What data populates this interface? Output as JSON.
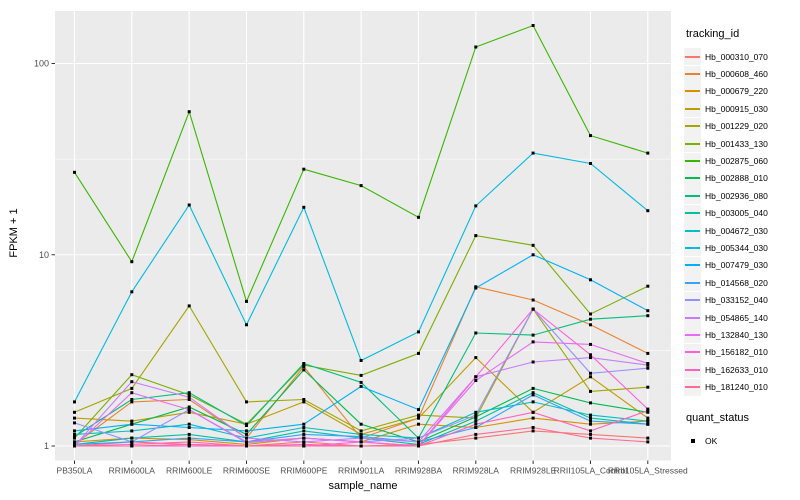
{
  "figure": {
    "background": "#FFFFFF",
    "panel_background": "#EBEBEB",
    "grid_color": "#FFFFFF",
    "axis_text_color": "#4D4D4D",
    "tick_color": "#333333",
    "point_color": "#000000",
    "legend_key_background": "#F2F2F2"
  },
  "axes": {
    "x_title": "sample_name",
    "y_title": "FPKM + 1",
    "y_tick_labels": [
      "1",
      "10",
      "100"
    ],
    "y_tick_values": [
      1,
      10,
      100
    ]
  },
  "legend": {
    "tracking_title": "tracking_id",
    "quant_title": "quant_status",
    "quant_items": [
      {
        "label": "OK"
      }
    ]
  },
  "chart_data": {
    "type": "line",
    "title": "",
    "xlabel": "sample_name",
    "ylabel": "FPKM + 1",
    "y_scale": "log10",
    "ylim": [
      0.95,
      200
    ],
    "grid": "on",
    "legend_position": "right",
    "y_major_breaks": [
      1,
      10,
      100
    ],
    "y_minor_breaks": [
      3.162,
      31.62
    ],
    "marker": "black-square",
    "categories": [
      "PB350LA",
      "RRIM600LA",
      "RRIM600LE",
      "RRIM600SE",
      "RRIM600PE",
      "RRIM901LA",
      "RRIM928BA",
      "RRIM928LA",
      "RRIM928LE",
      "RRII105LA_Control",
      "RRII105LA_Stressed"
    ],
    "series": [
      {
        "name": "Hb_000310_070",
        "color": "#F8766D",
        "values": [
          1.0,
          1.05,
          1.02,
          1.0,
          1.05,
          1.0,
          1.02,
          1.1,
          1.2,
          1.15,
          1.1
        ]
      },
      {
        "name": "Hb_000608_460",
        "color": "#EA8331",
        "values": [
          1.02,
          1.7,
          1.75,
          1.1,
          2.6,
          1.1,
          1.4,
          6.8,
          5.8,
          4.3,
          3.05
        ]
      },
      {
        "name": "Hb_000679_220",
        "color": "#D89000",
        "values": [
          1.05,
          1.1,
          1.08,
          1.02,
          1.1,
          1.05,
          1.3,
          1.25,
          1.4,
          1.3,
          1.35
        ]
      },
      {
        "name": "Hb_000915_030",
        "color": "#C09B00",
        "values": [
          1.4,
          1.35,
          1.5,
          1.3,
          1.7,
          1.15,
          1.4,
          2.9,
          1.5,
          2.3,
          1.4
        ]
      },
      {
        "name": "Hb_001229_020",
        "color": "#A3A500",
        "values": [
          1.5,
          2.0,
          5.4,
          1.7,
          1.75,
          1.2,
          1.45,
          1.4,
          5.2,
          1.93,
          2.03
        ]
      },
      {
        "name": "Hb_001433_130",
        "color": "#7CAE00",
        "values": [
          1.1,
          2.36,
          1.85,
          1.3,
          2.65,
          2.34,
          3.05,
          12.6,
          11.2,
          4.9,
          6.85
        ]
      },
      {
        "name": "Hb_002875_060",
        "color": "#39B600",
        "values": [
          27,
          9.2,
          56,
          5.7,
          28,
          23,
          15.7,
          122,
          158,
          42,
          34
        ]
      },
      {
        "name": "Hb_002888_010",
        "color": "#00BB4E",
        "values": [
          1.05,
          1.3,
          1.6,
          1.15,
          2.5,
          1.3,
          1.05,
          1.42,
          2.0,
          1.68,
          1.5
        ]
      },
      {
        "name": "Hb_002936_080",
        "color": "#00BF7D",
        "values": [
          1.12,
          1.75,
          1.9,
          1.28,
          2.7,
          2.15,
          1.1,
          3.9,
          3.8,
          4.6,
          4.8
        ]
      },
      {
        "name": "Hb_003005_040",
        "color": "#00C1A3",
        "values": [
          1.02,
          1.1,
          1.15,
          1.05,
          1.2,
          1.1,
          1.02,
          1.35,
          1.9,
          1.4,
          1.3
        ]
      },
      {
        "name": "Hb_004672_030",
        "color": "#00BFC4",
        "values": [
          1.15,
          1.2,
          1.3,
          1.1,
          1.25,
          1.15,
          1.1,
          1.5,
          1.7,
          1.45,
          1.35
        ]
      },
      {
        "name": "Hb_005344_030",
        "color": "#00BAE0",
        "values": [
          1.7,
          6.4,
          18.2,
          4.3,
          17.7,
          2.8,
          3.95,
          18,
          34,
          30,
          17
        ]
      },
      {
        "name": "Hb_007479_030",
        "color": "#00B0F6",
        "values": [
          1.2,
          1.3,
          1.25,
          1.2,
          1.3,
          2.05,
          1.55,
          6.7,
          10,
          7.4,
          5.1
        ]
      },
      {
        "name": "Hb_014568_020",
        "color": "#35A2FF",
        "values": [
          1.02,
          1.05,
          1.1,
          1.05,
          1.15,
          1.12,
          1.05,
          1.25,
          1.85,
          1.35,
          1.3
        ]
      },
      {
        "name": "Hb_033152_040",
        "color": "#9590FF",
        "values": [
          1.32,
          1.05,
          1.55,
          1.04,
          1.1,
          1.05,
          1.1,
          1.45,
          5.2,
          2.4,
          2.55
        ]
      },
      {
        "name": "Hb_054865_140",
        "color": "#C77CFF",
        "values": [
          1.0,
          2.17,
          1.8,
          1.1,
          1.05,
          1.1,
          1.05,
          2.3,
          2.75,
          2.9,
          2.65
        ]
      },
      {
        "name": "Hb_132840_130",
        "color": "#E76BF3",
        "values": [
          1.0,
          1.9,
          1.55,
          1.05,
          1.1,
          1.05,
          1.0,
          2.2,
          3.5,
          3.4,
          2.7
        ]
      },
      {
        "name": "Hb_156182_010",
        "color": "#FA62DB",
        "values": [
          1.0,
          1.0,
          1.0,
          1.0,
          1.0,
          1.05,
          1.0,
          2.3,
          5.2,
          3.0,
          1.56
        ]
      },
      {
        "name": "Hb_162633_010",
        "color": "#FF62BC",
        "values": [
          1.0,
          1.02,
          1.05,
          1.0,
          1.02,
          1.0,
          1.0,
          1.3,
          1.5,
          1.2,
          1.53
        ]
      },
      {
        "name": "Hb_181240_010",
        "color": "#FF6A98",
        "values": [
          1.0,
          1.0,
          1.02,
          1.0,
          1.0,
          1.0,
          1.0,
          1.15,
          1.25,
          1.1,
          1.05
        ]
      }
    ]
  }
}
